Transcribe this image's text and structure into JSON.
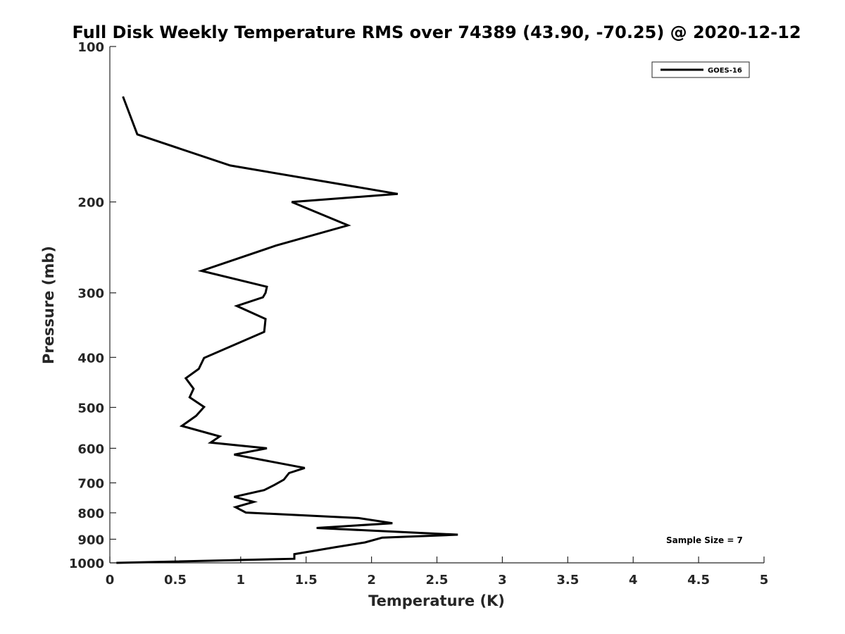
{
  "chart_data": {
    "type": "line",
    "title": "Full Disk Weekly Temperature RMS over 74389 (43.90, -70.25) @ 2020-12-12",
    "xlabel": "Temperature (K)",
    "ylabel": "Pressure (mb)",
    "xlim": [
      0,
      5
    ],
    "ylim": [
      100,
      1000
    ],
    "y_scale": "log",
    "y_reversed": true,
    "grid": false,
    "legend_position": "top-right",
    "x_ticks": [
      "0",
      "0.5",
      "1",
      "1.5",
      "2",
      "2.5",
      "3",
      "3.5",
      "4",
      "4.5",
      "5"
    ],
    "x_tick_values": [
      0,
      0.5,
      1,
      1.5,
      2,
      2.5,
      3,
      3.5,
      4,
      4.5,
      5
    ],
    "y_ticks": [
      "100",
      "200",
      "300",
      "400",
      "500",
      "600",
      "700",
      "800",
      "900",
      "1000"
    ],
    "y_tick_values": [
      100,
      200,
      300,
      400,
      500,
      600,
      700,
      800,
      900,
      1000
    ],
    "annotation": "Sample Size = 7",
    "series": [
      {
        "name": "GOES-16",
        "color": "#000000",
        "x": [
          0.1,
          0.21,
          0.92,
          2.2,
          1.39,
          1.82,
          1.27,
          0.7,
          1.2,
          1.19,
          1.17,
          0.97,
          1.19,
          1.18,
          0.72,
          0.68,
          0.58,
          0.64,
          0.61,
          0.72,
          0.66,
          0.55,
          0.84,
          0.77,
          1.2,
          0.95,
          1.49,
          1.37,
          1.33,
          1.26,
          1.18,
          0.95,
          1.1,
          0.96,
          1.04,
          1.9,
          2.16,
          1.58,
          2.66,
          2.08,
          1.95,
          1.72,
          1.41,
          1.41,
          0.05
        ],
        "y": [
          125,
          148,
          170,
          193,
          200,
          222,
          243,
          272,
          292,
          300,
          306,
          318,
          337,
          357,
          401,
          421,
          439,
          460,
          478,
          499,
          519,
          543,
          569,
          585,
          600,
          617,
          655,
          670,
          690,
          706,
          723,
          745,
          762,
          780,
          799,
          819,
          838,
          856,
          882,
          894,
          913,
          933,
          962,
          982,
          1000
        ]
      }
    ]
  }
}
